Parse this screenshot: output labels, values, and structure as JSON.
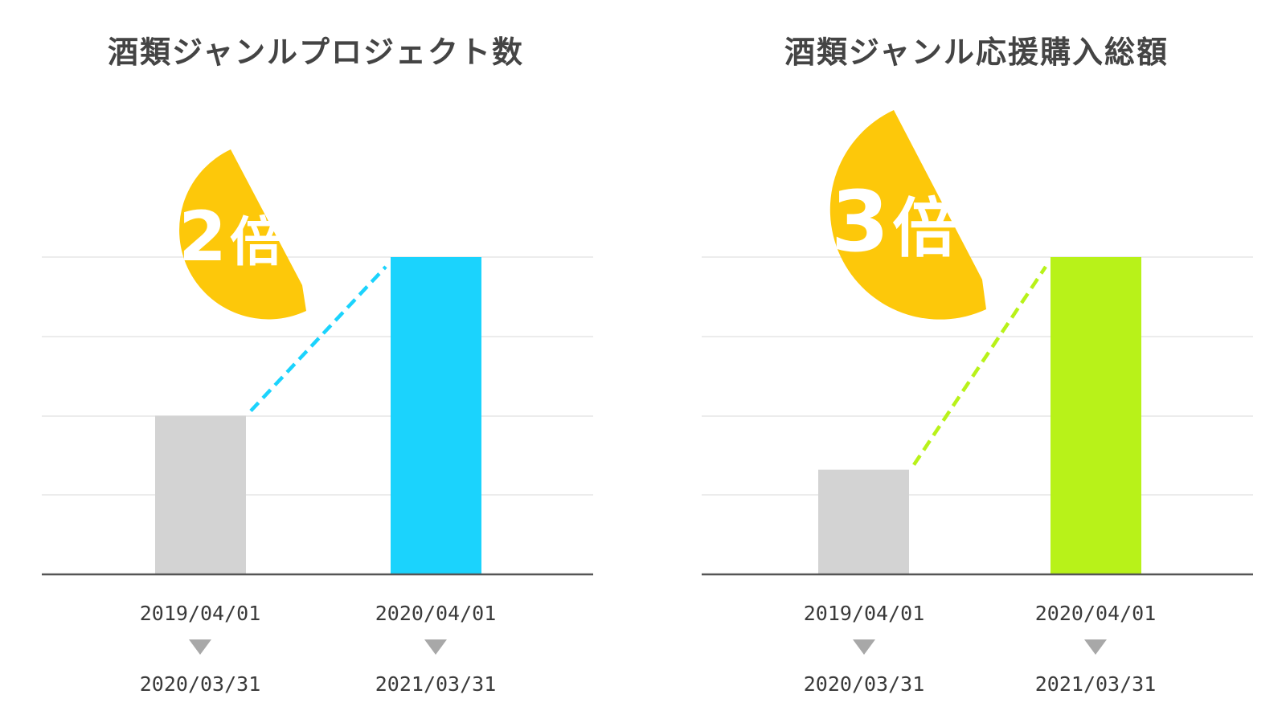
{
  "colors": {
    "badge": "#FDC80A",
    "before_bar": "#D3D3D3",
    "gridline": "#E6E6E6",
    "axis": "#555555",
    "arrow": "#A8A8A8"
  },
  "chart_data": [
    {
      "type": "bar",
      "title": "酒類ジャンルプロジェクト数",
      "categories": [
        [
          "2019/04/01",
          "2020/03/31"
        ],
        [
          "2020/04/01",
          "2021/03/31"
        ]
      ],
      "values": [
        0.5,
        1.0
      ],
      "ylim": [
        0,
        1.0
      ],
      "gridlines": 4,
      "bar_colors": [
        "#D3D3D3",
        "#1BD3FD"
      ],
      "connector_color": "#1BD3FD",
      "annotation": {
        "number": "2",
        "unit": "倍"
      }
    },
    {
      "type": "bar",
      "title": "酒類ジャンル応援購入総額",
      "categories": [
        [
          "2019/04/01",
          "2020/03/31"
        ],
        [
          "2020/04/01",
          "2021/03/31"
        ]
      ],
      "values": [
        0.33,
        1.0
      ],
      "ylim": [
        0,
        1.0
      ],
      "gridlines": 4,
      "bar_colors": [
        "#D3D3D3",
        "#B8F219"
      ],
      "connector_color": "#B8F219",
      "annotation": {
        "number": "3",
        "unit": "倍"
      }
    }
  ]
}
